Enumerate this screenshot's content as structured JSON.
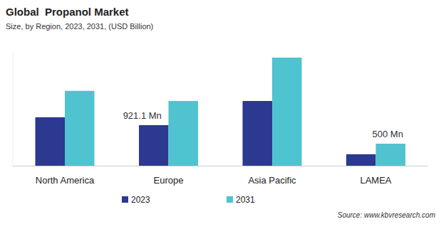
{
  "chart_data": {
    "type": "bar",
    "title": "Global  Propanol Market",
    "subtitle": "Size, by Region, 2023, 2031, (USD Billion)",
    "categories": [
      "North America",
      "Europe",
      "Asia Pacific",
      "LAMEA"
    ],
    "series": [
      {
        "name": "2023",
        "color": "#2b3990",
        "values": [
          1100,
          921.1,
          1470,
          260
        ],
        "value_labels": [
          null,
          "921.1 Mn",
          null,
          null
        ]
      },
      {
        "name": "2031",
        "color": "#4fc3cf",
        "values": [
          1700,
          1470,
          2455,
          500
        ],
        "value_labels": [
          null,
          null,
          null,
          "500 Mn"
        ]
      }
    ],
    "ylim": [
      0,
      2600
    ],
    "tick_labels": "x",
    "data_labels": true,
    "legend": "bottom",
    "source": "Source: www.kbvresearch.com"
  }
}
